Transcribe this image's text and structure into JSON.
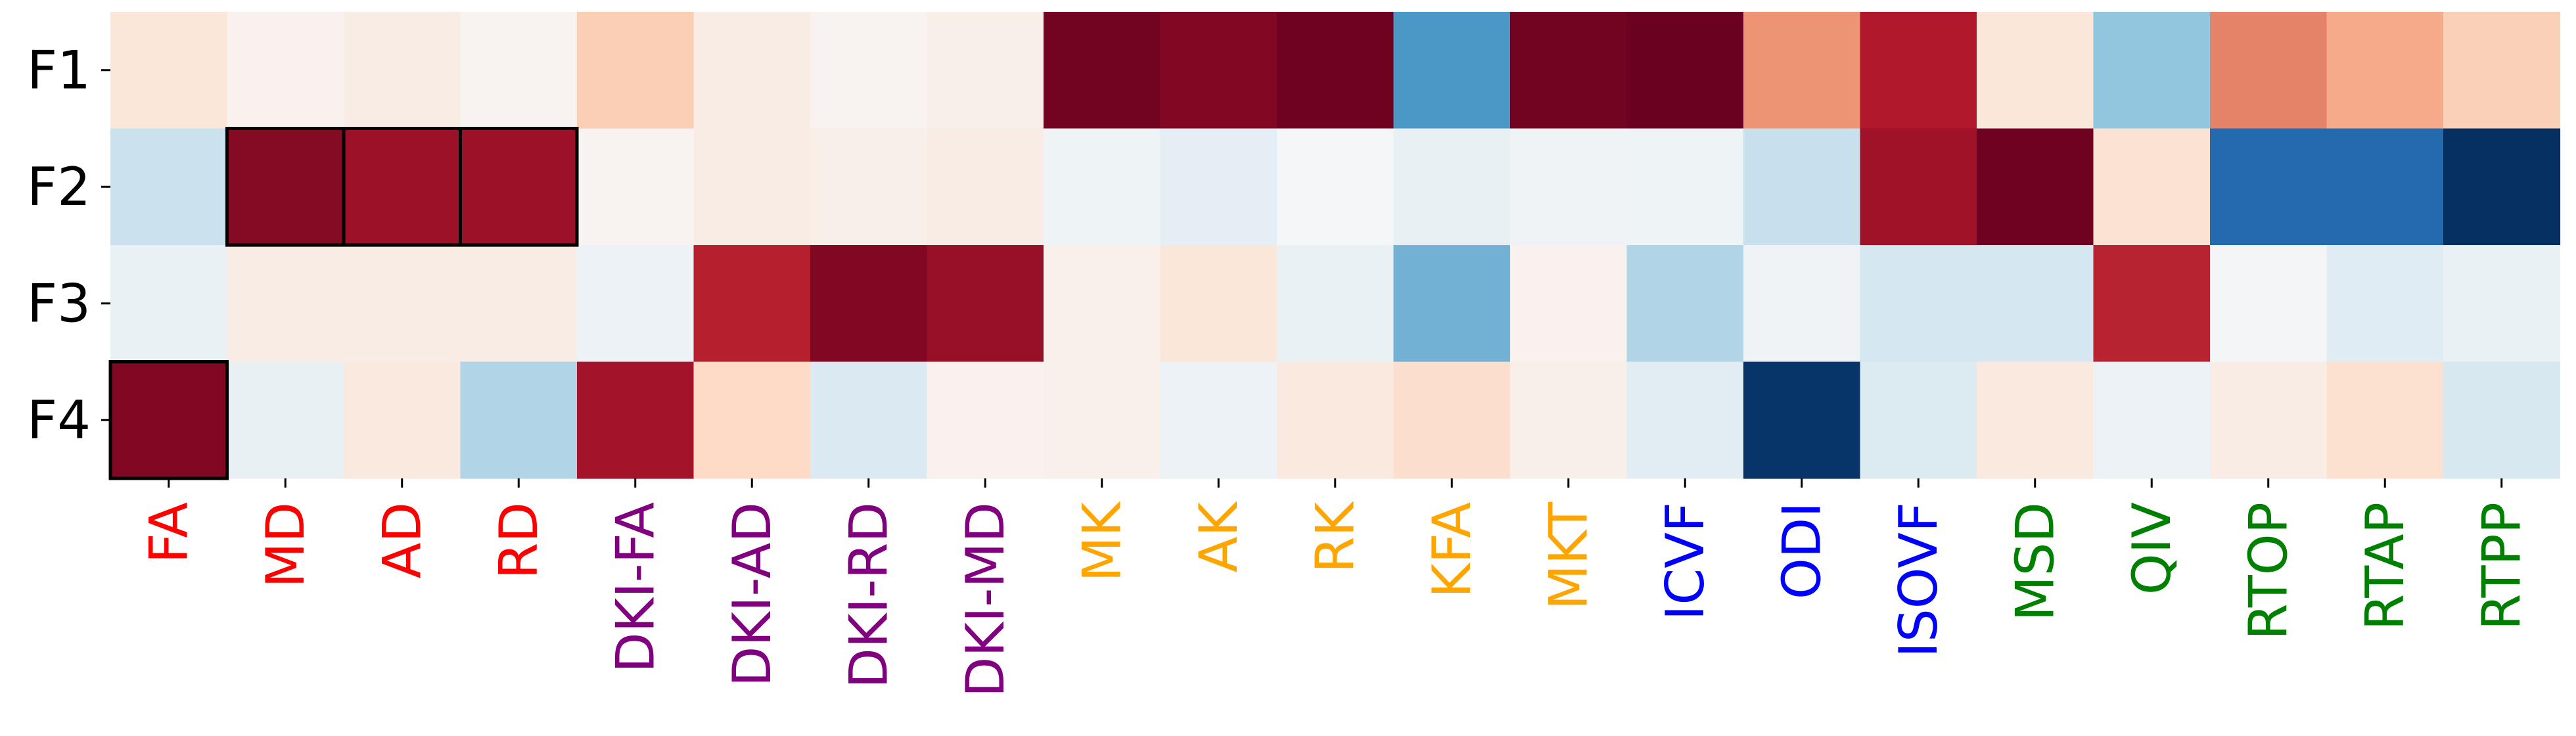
{
  "chart_data": {
    "type": "heatmap",
    "title": "",
    "xlabel": "",
    "ylabel": "",
    "rows": [
      "F1",
      "F2",
      "F3",
      "F4"
    ],
    "columns": [
      {
        "label": "FA",
        "color": "#ff0000"
      },
      {
        "label": "MD",
        "color": "#ff0000"
      },
      {
        "label": "AD",
        "color": "#ff0000"
      },
      {
        "label": "RD",
        "color": "#ff0000"
      },
      {
        "label": "DKI-FA",
        "color": "#800080"
      },
      {
        "label": "DKI-AD",
        "color": "#800080"
      },
      {
        "label": "DKI-RD",
        "color": "#800080"
      },
      {
        "label": "DKI-MD",
        "color": "#800080"
      },
      {
        "label": "MK",
        "color": "#ffa500"
      },
      {
        "label": "AK",
        "color": "#ffa500"
      },
      {
        "label": "RK",
        "color": "#ffa500"
      },
      {
        "label": "KFA",
        "color": "#ffa500"
      },
      {
        "label": "MKT",
        "color": "#ffa500"
      },
      {
        "label": "ICVF",
        "color": "#0000ff"
      },
      {
        "label": "ODI",
        "color": "#0000ff"
      },
      {
        "label": "ISOVF",
        "color": "#0000ff"
      },
      {
        "label": "MSD",
        "color": "#008000"
      },
      {
        "label": "QIV",
        "color": "#008000"
      },
      {
        "label": "RTOP",
        "color": "#008000"
      },
      {
        "label": "RTAP",
        "color": "#008000"
      },
      {
        "label": "RTPP",
        "color": "#008000"
      }
    ],
    "colormap": "RdBu_r",
    "vmin": -1,
    "vmax": 1,
    "values": [
      [
        0.12,
        0.04,
        0.08,
        0.03,
        0.25,
        0.08,
        0.03,
        0.06,
        0.97,
        0.93,
        0.98,
        -0.58,
        0.97,
        0.99,
        0.45,
        0.8,
        0.12,
        -0.4,
        0.5,
        0.38,
        0.24
      ],
      [
        -0.22,
        0.92,
        0.86,
        0.86,
        0.03,
        0.08,
        0.06,
        0.08,
        -0.05,
        -0.1,
        -0.01,
        -0.08,
        -0.04,
        -0.05,
        -0.23,
        0.85,
        0.98,
        0.15,
        -0.78,
        -0.78,
        -1.0
      ],
      [
        -0.07,
        0.08,
        0.08,
        0.08,
        -0.06,
        0.78,
        0.93,
        0.87,
        0.05,
        0.12,
        -0.07,
        -0.48,
        0.04,
        -0.3,
        -0.04,
        -0.18,
        -0.18,
        0.77,
        -0.02,
        -0.12,
        -0.07
      ],
      [
        0.93,
        -0.08,
        0.1,
        -0.3,
        0.84,
        0.2,
        -0.15,
        0.04,
        0.05,
        -0.06,
        0.1,
        0.18,
        0.06,
        -0.11,
        -0.98,
        -0.14,
        0.1,
        -0.06,
        0.08,
        0.16,
        -0.17
      ]
    ],
    "highlighted_cells": [
      [
        1,
        1
      ],
      [
        1,
        2
      ],
      [
        1,
        3
      ],
      [
        3,
        0
      ]
    ],
    "grid": false,
    "legend": "none"
  }
}
